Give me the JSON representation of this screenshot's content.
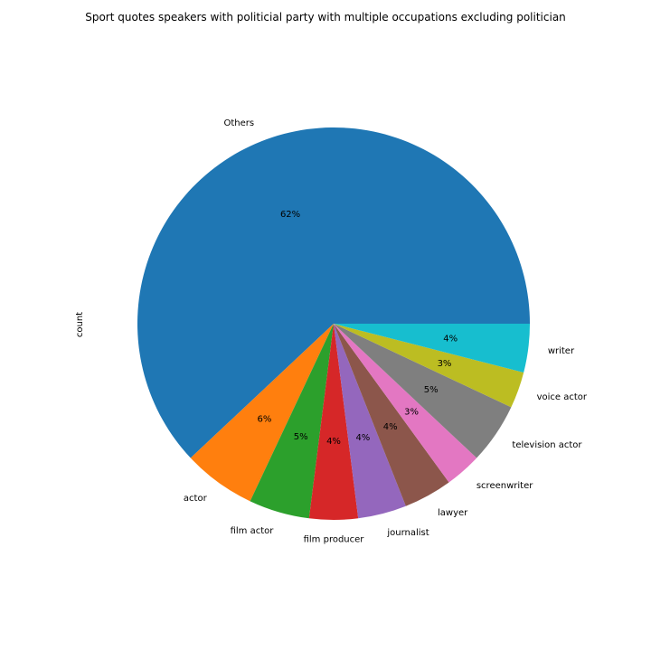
{
  "chart_data": {
    "type": "pie",
    "title": "Sport quotes speakers with politicial party with multiple occupations excluding politician",
    "ylabel": "count",
    "start_angle_deg": 0,
    "direction": "counterclockwise",
    "slices": [
      {
        "label": "Others",
        "value": 62,
        "pct_label": "62%",
        "color": "#1f77b4"
      },
      {
        "label": "actor",
        "value": 6,
        "pct_label": "6%",
        "color": "#ff7f0e"
      },
      {
        "label": "film actor",
        "value": 5,
        "pct_label": "5%",
        "color": "#2ca02c"
      },
      {
        "label": "film producer",
        "value": 4,
        "pct_label": "4%",
        "color": "#d62728"
      },
      {
        "label": "journalist",
        "value": 4,
        "pct_label": "4%",
        "color": "#9467bd"
      },
      {
        "label": "lawyer",
        "value": 4,
        "pct_label": "4%",
        "color": "#8c564b"
      },
      {
        "label": "screenwriter",
        "value": 3,
        "pct_label": "3%",
        "color": "#e377c2"
      },
      {
        "label": "television actor",
        "value": 5,
        "pct_label": "5%",
        "color": "#7f7f7f"
      },
      {
        "label": "voice actor",
        "value": 3,
        "pct_label": "3%",
        "color": "#bcbd22"
      },
      {
        "label": "writer",
        "value": 4,
        "pct_label": "4%",
        "color": "#17becf"
      }
    ]
  }
}
